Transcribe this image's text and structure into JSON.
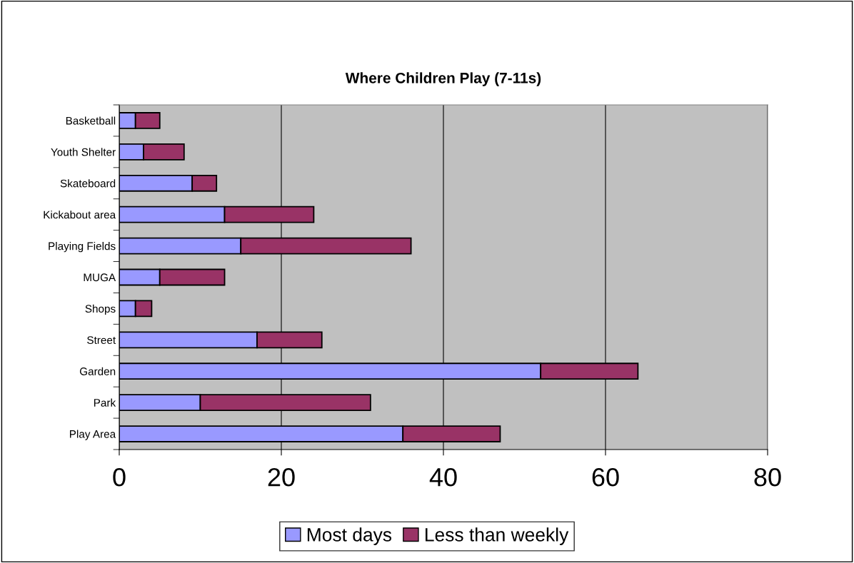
{
  "chart_data": {
    "type": "bar",
    "orientation": "horizontal",
    "stacked": true,
    "title": "Where Children Play (7-11s)",
    "categories": [
      "Basketball",
      "Youth Shelter",
      "Skateboard",
      "Kickabout area",
      "Playing Fields",
      "MUGA",
      "Shops",
      "Street",
      "Garden",
      "Park",
      "Play Area"
    ],
    "series": [
      {
        "name": "Most days",
        "color": "#9999ff",
        "values": [
          2,
          3,
          9,
          13,
          15,
          5,
          2,
          17,
          52,
          10,
          35
        ]
      },
      {
        "name": "Less than weekly",
        "color": "#993366",
        "values": [
          3,
          5,
          3,
          11,
          21,
          8,
          2,
          8,
          12,
          21,
          12
        ]
      }
    ],
    "xlim": [
      0,
      80
    ],
    "xticks": [
      0,
      20,
      40,
      60,
      80
    ],
    "grid": "x",
    "legend": "bottom"
  }
}
